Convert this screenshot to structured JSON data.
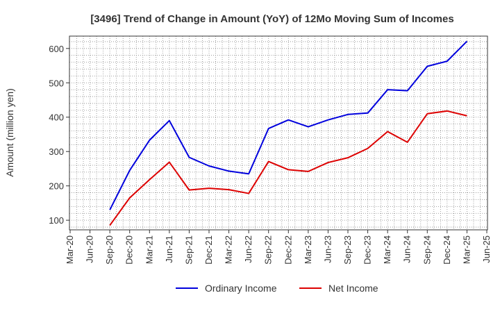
{
  "chart_data": {
    "type": "line",
    "title": "[3496]  Trend of Change in Amount (YoY) of 12Mo Moving Sum of Incomes",
    "xlabel": "",
    "ylabel": "Amount (million yen)",
    "categories": [
      "Mar-20",
      "Jun-20",
      "Sep-20",
      "Dec-20",
      "Mar-21",
      "Jun-21",
      "Sep-21",
      "Dec-21",
      "Mar-22",
      "Jun-22",
      "Sep-22",
      "Dec-22",
      "Mar-23",
      "Jun-23",
      "Sep-23",
      "Dec-23",
      "Mar-24",
      "Jun-24",
      "Sep-24",
      "Dec-24",
      "Mar-25",
      "Jun-25"
    ],
    "yticks": [
      100,
      200,
      300,
      400,
      500,
      600
    ],
    "ylim": [
      72,
      636
    ],
    "grid": true,
    "legend_position": "bottom",
    "series": [
      {
        "name": "Ordinary Income",
        "color": "#0000dd",
        "values": [
          null,
          null,
          130,
          245,
          333,
          390,
          283,
          258,
          243,
          235,
          367,
          392,
          372,
          392,
          408,
          412,
          480,
          477,
          548,
          563,
          621,
          null
        ]
      },
      {
        "name": "Net Income",
        "color": "#dd0000",
        "values": [
          null,
          null,
          85,
          165,
          218,
          269,
          188,
          193,
          189,
          178,
          271,
          247,
          242,
          268,
          282,
          309,
          358,
          327,
          410,
          418,
          404,
          null
        ]
      }
    ]
  }
}
